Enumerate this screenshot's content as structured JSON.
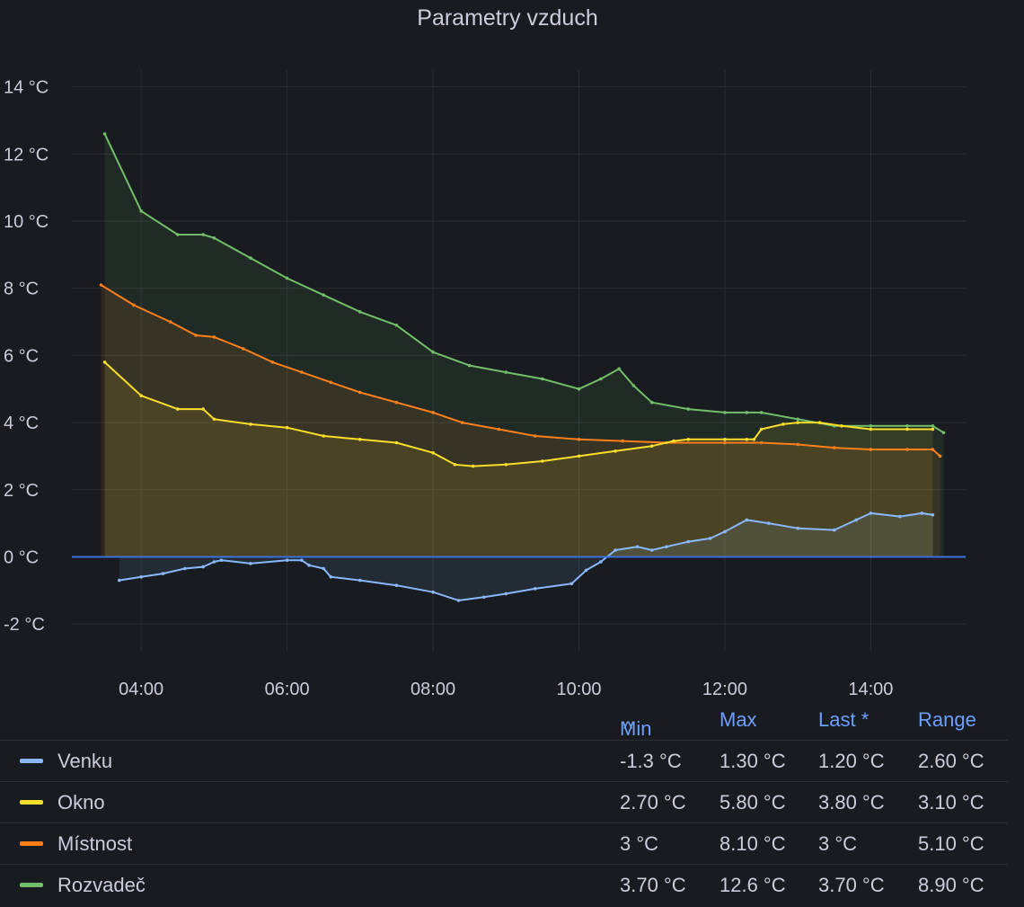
{
  "panel": {
    "title": "Parametry vzduch"
  },
  "legend": {
    "headers": {
      "min": "Min",
      "min_sort": "^",
      "max": "Max",
      "last": "Last *",
      "range": "Range"
    },
    "rows": [
      {
        "name": "Venku",
        "color": "#8ab8ff",
        "min": "-1.3 °C",
        "max": "1.30 °C",
        "last": "1.20 °C",
        "range": "2.60 °C"
      },
      {
        "name": "Okno",
        "color": "#fade2a",
        "min": "2.70 °C",
        "max": "5.80 °C",
        "last": "3.80 °C",
        "range": "3.10 °C"
      },
      {
        "name": "Místnost",
        "color": "#ff7f1b",
        "min": "3 °C",
        "max": "8.10 °C",
        "last": "3 °C",
        "range": "5.10 °C"
      },
      {
        "name": "Rozvadeč",
        "color": "#73bf69",
        "min": "3.70 °C",
        "max": "12.6 °C",
        "last": "3.70 °C",
        "range": "8.90 °C"
      }
    ]
  },
  "chart_data": {
    "type": "area",
    "title": "Parametry vzduch",
    "xlabel": "",
    "ylabel": "",
    "grid": true,
    "legend_position": "bottom",
    "x_ticks": [
      "04:00",
      "06:00",
      "08:00",
      "10:00",
      "12:00",
      "14:00"
    ],
    "y_ticks": [
      "14 °C",
      "12 °C",
      "10 °C",
      "8 °C",
      "6 °C",
      "4 °C",
      "2 °C",
      "0 °C",
      "-2 °C"
    ],
    "xlim": [
      3.05,
      15.3
    ],
    "ylim": [
      -2.8,
      14.5
    ],
    "series": [
      {
        "name": "Rozvadeč",
        "color": "#73bf69",
        "points": [
          [
            3.5,
            12.6
          ],
          [
            4.0,
            10.3
          ],
          [
            4.5,
            9.6
          ],
          [
            4.85,
            9.6
          ],
          [
            5.0,
            9.5
          ],
          [
            5.5,
            8.9
          ],
          [
            6.0,
            8.3
          ],
          [
            6.5,
            7.8
          ],
          [
            7.0,
            7.3
          ],
          [
            7.5,
            6.9
          ],
          [
            8.0,
            6.1
          ],
          [
            8.5,
            5.7
          ],
          [
            9.0,
            5.5
          ],
          [
            9.5,
            5.3
          ],
          [
            10.0,
            5.0
          ],
          [
            10.3,
            5.3
          ],
          [
            10.55,
            5.6
          ],
          [
            10.75,
            5.1
          ],
          [
            11.0,
            4.6
          ],
          [
            11.5,
            4.4
          ],
          [
            12.0,
            4.3
          ],
          [
            12.3,
            4.3
          ],
          [
            12.5,
            4.3
          ],
          [
            13.0,
            4.1
          ],
          [
            13.5,
            3.9
          ],
          [
            14.0,
            3.9
          ],
          [
            14.5,
            3.9
          ],
          [
            14.85,
            3.9
          ],
          [
            15.0,
            3.7
          ]
        ]
      },
      {
        "name": "Místnost",
        "color": "#ff7f1b",
        "points": [
          [
            3.45,
            8.1
          ],
          [
            3.9,
            7.5
          ],
          [
            4.4,
            7.0
          ],
          [
            4.75,
            6.6
          ],
          [
            5.0,
            6.55
          ],
          [
            5.4,
            6.2
          ],
          [
            5.8,
            5.8
          ],
          [
            6.2,
            5.5
          ],
          [
            6.6,
            5.2
          ],
          [
            7.0,
            4.9
          ],
          [
            7.5,
            4.6
          ],
          [
            8.0,
            4.3
          ],
          [
            8.4,
            4.0
          ],
          [
            8.9,
            3.8
          ],
          [
            9.4,
            3.6
          ],
          [
            10.0,
            3.5
          ],
          [
            10.6,
            3.45
          ],
          [
            11.2,
            3.4
          ],
          [
            12.0,
            3.4
          ],
          [
            12.5,
            3.4
          ],
          [
            13.0,
            3.35
          ],
          [
            13.5,
            3.25
          ],
          [
            14.0,
            3.2
          ],
          [
            14.5,
            3.2
          ],
          [
            14.85,
            3.2
          ],
          [
            14.95,
            3.0
          ]
        ]
      },
      {
        "name": "Okno",
        "color": "#fade2a",
        "points": [
          [
            3.5,
            5.8
          ],
          [
            4.0,
            4.8
          ],
          [
            4.5,
            4.4
          ],
          [
            4.85,
            4.4
          ],
          [
            5.0,
            4.1
          ],
          [
            5.5,
            3.95
          ],
          [
            6.0,
            3.85
          ],
          [
            6.5,
            3.6
          ],
          [
            7.0,
            3.5
          ],
          [
            7.5,
            3.4
          ],
          [
            8.0,
            3.1
          ],
          [
            8.3,
            2.75
          ],
          [
            8.55,
            2.7
          ],
          [
            9.0,
            2.75
          ],
          [
            9.5,
            2.85
          ],
          [
            10.0,
            3.0
          ],
          [
            10.5,
            3.15
          ],
          [
            11.0,
            3.3
          ],
          [
            11.3,
            3.45
          ],
          [
            11.5,
            3.5
          ],
          [
            12.0,
            3.5
          ],
          [
            12.3,
            3.5
          ],
          [
            12.4,
            3.5
          ],
          [
            12.5,
            3.8
          ],
          [
            12.8,
            3.95
          ],
          [
            13.0,
            4.0
          ],
          [
            13.3,
            4.0
          ],
          [
            13.6,
            3.9
          ],
          [
            14.0,
            3.8
          ],
          [
            14.5,
            3.8
          ],
          [
            14.85,
            3.8
          ]
        ]
      },
      {
        "name": "Venku",
        "color": "#8ab8ff",
        "points": [
          [
            3.7,
            -0.7
          ],
          [
            4.0,
            -0.6
          ],
          [
            4.3,
            -0.5
          ],
          [
            4.6,
            -0.35
          ],
          [
            4.85,
            -0.3
          ],
          [
            5.0,
            -0.15
          ],
          [
            5.1,
            -0.1
          ],
          [
            5.5,
            -0.2
          ],
          [
            6.0,
            -0.1
          ],
          [
            6.2,
            -0.1
          ],
          [
            6.3,
            -0.25
          ],
          [
            6.5,
            -0.35
          ],
          [
            6.6,
            -0.6
          ],
          [
            7.0,
            -0.7
          ],
          [
            7.5,
            -0.85
          ],
          [
            8.0,
            -1.05
          ],
          [
            8.35,
            -1.3
          ],
          [
            8.7,
            -1.2
          ],
          [
            9.0,
            -1.1
          ],
          [
            9.4,
            -0.95
          ],
          [
            9.9,
            -0.8
          ],
          [
            10.1,
            -0.4
          ],
          [
            10.3,
            -0.15
          ],
          [
            10.5,
            0.2
          ],
          [
            10.8,
            0.3
          ],
          [
            11.0,
            0.2
          ],
          [
            11.2,
            0.3
          ],
          [
            11.5,
            0.45
          ],
          [
            11.8,
            0.55
          ],
          [
            12.0,
            0.75
          ],
          [
            12.3,
            1.1
          ],
          [
            12.6,
            1.0
          ],
          [
            13.0,
            0.85
          ],
          [
            13.5,
            0.8
          ],
          [
            13.8,
            1.1
          ],
          [
            14.0,
            1.3
          ],
          [
            14.4,
            1.2
          ],
          [
            14.7,
            1.3
          ],
          [
            14.85,
            1.25
          ]
        ]
      }
    ]
  }
}
